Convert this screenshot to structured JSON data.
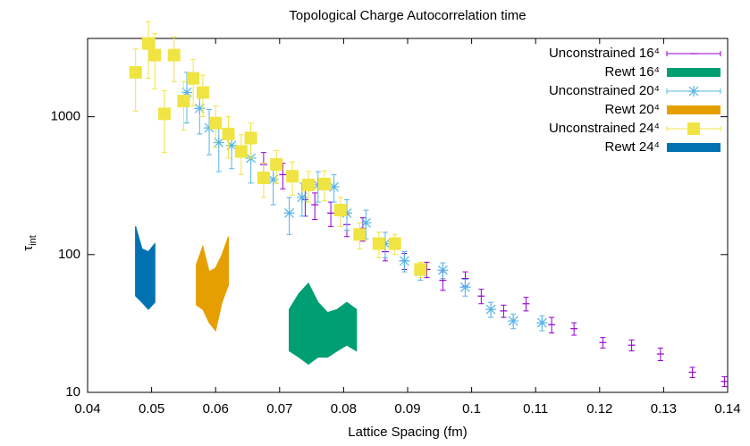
{
  "chart_data": {
    "type": "scatter",
    "title": "Topological Charge Autocorrelation time",
    "x_label": "Lattice Spacing (fm)",
    "y_label": {
      "symbol": "τ",
      "subscript": "int"
    },
    "log_y": true,
    "xlim": [
      0.04,
      0.14
    ],
    "xticks": [
      0.04,
      0.05,
      0.06,
      0.07,
      0.08,
      0.09,
      0.1,
      0.11,
      0.12,
      0.13,
      0.14
    ],
    "ylim": [
      10,
      3700
    ],
    "yticks": [
      10,
      100,
      1000
    ],
    "legend": "top-right",
    "series": [
      {
        "name": "Unconstrained 16⁴",
        "style": "errorbars",
        "marker": "plus",
        "color": "#9400d3",
        "x": [
          0.0675,
          0.0705,
          0.074,
          0.0755,
          0.078,
          0.0805,
          0.083,
          0.0865,
          0.0895,
          0.093,
          0.0955,
          0.099,
          0.1015,
          0.105,
          0.1085,
          0.1125,
          0.116,
          0.1205,
          0.125,
          0.1295,
          0.1345,
          0.1395
        ],
        "values": [
          450,
          380,
          250,
          230,
          200,
          165,
          155,
          105,
          90,
          78,
          65,
          67,
          50,
          39,
          44,
          31,
          29,
          23,
          22,
          19,
          14,
          12
        ],
        "errors": [
          100,
          80,
          60,
          50,
          40,
          30,
          30,
          15,
          12,
          10,
          10,
          8,
          6,
          4,
          5,
          4,
          3,
          2,
          2,
          2,
          1.2,
          1
        ]
      },
      {
        "name": "Rewt 16⁴",
        "style": "band",
        "color": "#009e73",
        "x": [
          0.0715,
          0.073,
          0.0745,
          0.076,
          0.0775,
          0.079,
          0.0805,
          0.082
        ],
        "lower": [
          20,
          18,
          16,
          18,
          18,
          20,
          22,
          20
        ],
        "upper": [
          40,
          52,
          62,
          45,
          38,
          40,
          45,
          40
        ]
      },
      {
        "name": "Unconstrained 20⁴",
        "style": "errorbars",
        "marker": "star",
        "color": "#56b4e9",
        "x": [
          0.0555,
          0.0575,
          0.059,
          0.0605,
          0.0625,
          0.0655,
          0.069,
          0.0715,
          0.0735,
          0.076,
          0.0785,
          0.0805,
          0.0835,
          0.0865,
          0.0895,
          0.092,
          0.0955,
          0.099,
          0.103,
          0.1065,
          0.111
        ],
        "values": [
          1500,
          1150,
          830,
          650,
          620,
          500,
          350,
          200,
          260,
          320,
          310,
          200,
          170,
          120,
          90,
          75,
          77,
          58,
          40,
          33,
          32
        ],
        "errors": [
          600,
          400,
          300,
          250,
          200,
          170,
          120,
          60,
          70,
          80,
          70,
          50,
          40,
          25,
          15,
          10,
          10,
          8,
          5,
          4,
          4
        ]
      },
      {
        "name": "Rewt 20⁴",
        "style": "band",
        "color": "#e69f00",
        "x": [
          0.057,
          0.058,
          0.059,
          0.06,
          0.061,
          0.062
        ],
        "lower": [
          43,
          40,
          32,
          28,
          45,
          60
        ],
        "upper": [
          85,
          115,
          75,
          80,
          100,
          135
        ]
      },
      {
        "name": "Unconstrained 24⁴",
        "style": "errorbars",
        "marker": "square",
        "color": "#f0e442",
        "x": [
          0.0475,
          0.0495,
          0.0505,
          0.052,
          0.0535,
          0.055,
          0.0565,
          0.058,
          0.06,
          0.062,
          0.064,
          0.0655,
          0.0675,
          0.0695,
          0.072,
          0.0745,
          0.077,
          0.0795,
          0.0825,
          0.0855,
          0.088,
          0.092
        ],
        "values": [
          2100,
          3400,
          2800,
          1050,
          2800,
          1300,
          1900,
          1500,
          900,
          750,
          560,
          700,
          360,
          450,
          370,
          320,
          325,
          210,
          140,
          120,
          120,
          78
        ],
        "errors": [
          1000,
          1500,
          1200,
          500,
          1000,
          500,
          700,
          500,
          300,
          250,
          180,
          200,
          100,
          120,
          100,
          80,
          80,
          50,
          30,
          25,
          20,
          10
        ]
      },
      {
        "name": "Rewt 24⁴",
        "style": "band",
        "color": "#0072b2",
        "x": [
          0.0475,
          0.0485,
          0.0495,
          0.0505
        ],
        "lower": [
          50,
          45,
          40,
          45
        ],
        "upper": [
          160,
          110,
          105,
          120
        ]
      }
    ]
  }
}
